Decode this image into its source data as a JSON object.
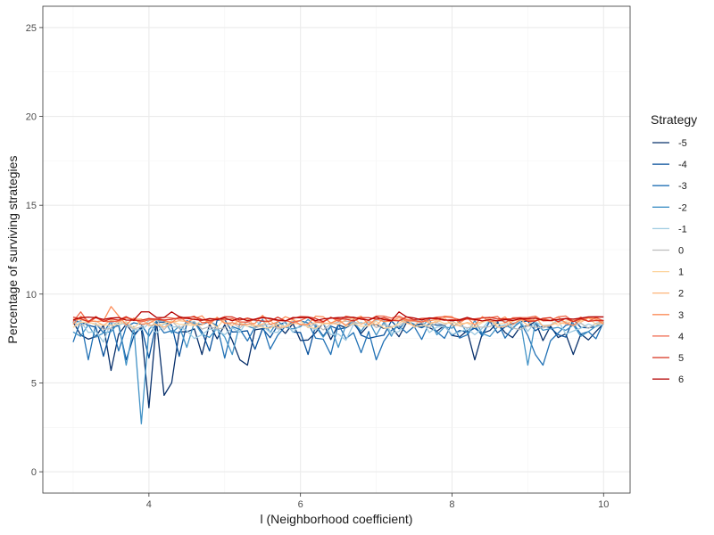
{
  "chart_data": {
    "type": "line",
    "title": "",
    "xlabel": "l (Neighborhood coefficient)",
    "ylabel": "Percentage of surviving strategies",
    "xlim": [
      2.6,
      10.35
    ],
    "ylim": [
      -1.2,
      26.2
    ],
    "x_ticks": [
      4,
      6,
      8,
      10
    ],
    "y_ticks": [
      0,
      5,
      10,
      15,
      20,
      25
    ],
    "grid": true,
    "legend": {
      "title": "Strategy",
      "placement": "right"
    },
    "x_sampling": {
      "start": 3,
      "end": 10,
      "step": 0.1
    },
    "series": [
      {
        "name": "-5",
        "color": "#08306b",
        "seed": 11,
        "baseline": 8.0,
        "noise": 0.6,
        "dips": [
          [
            3.45,
            5.7
          ],
          [
            3.95,
            3.6
          ],
          [
            4.25,
            4.3
          ],
          [
            4.3,
            5.0
          ],
          [
            4.7,
            6.6
          ],
          [
            5.15,
            6.3
          ],
          [
            5.3,
            6.0
          ],
          [
            7.35,
            7.6
          ],
          [
            8.3,
            6.3
          ],
          [
            9.6,
            6.6
          ]
        ]
      },
      {
        "name": "-4",
        "color": "#08519c",
        "seed": 23,
        "baseline": 8.1,
        "noise": 0.55,
        "dips": [
          [
            3.4,
            6.5
          ],
          [
            3.75,
            6.3
          ],
          [
            4.0,
            6.4
          ],
          [
            4.4,
            6.5
          ],
          [
            4.8,
            6.8
          ],
          [
            5.45,
            6.9
          ],
          [
            6.1,
            6.6
          ]
        ]
      },
      {
        "name": "-3",
        "color": "#2171b5",
        "seed": 37,
        "baseline": 8.0,
        "noise": 0.6,
        "dips": [
          [
            3.0,
            7.3
          ],
          [
            3.2,
            6.3
          ],
          [
            3.6,
            6.8
          ],
          [
            5.0,
            6.4
          ],
          [
            5.6,
            6.9
          ],
          [
            6.4,
            6.6
          ],
          [
            6.8,
            6.7
          ],
          [
            7.0,
            6.3
          ],
          [
            9.1,
            6.6
          ],
          [
            9.2,
            6.0
          ]
        ]
      },
      {
        "name": "-2",
        "color": "#4292c6",
        "seed": 51,
        "baseline": 8.1,
        "noise": 0.55,
        "dips": [
          [
            3.85,
            2.7
          ],
          [
            3.7,
            6.0
          ],
          [
            4.55,
            7.0
          ],
          [
            5.1,
            6.6
          ],
          [
            6.5,
            7.0
          ],
          [
            9.0,
            6.0
          ]
        ]
      },
      {
        "name": "-1",
        "color": "#9ecae1",
        "seed": 67,
        "baseline": 8.2,
        "noise": 0.45,
        "dips": [
          [
            3.4,
            7.3
          ],
          [
            4.6,
            7.5
          ],
          [
            6.6,
            7.4
          ]
        ]
      },
      {
        "name": "0",
        "color": "#bdbdbd",
        "seed": 79,
        "baseline": 8.3,
        "noise": 0.3,
        "dips": []
      },
      {
        "name": "1",
        "color": "#fdd49e",
        "seed": 83,
        "baseline": 8.4,
        "noise": 0.3,
        "dips": []
      },
      {
        "name": "2",
        "color": "#fdbb84",
        "seed": 97,
        "baseline": 8.45,
        "noise": 0.3,
        "dips": []
      },
      {
        "name": "3",
        "color": "#fc8d59",
        "seed": 101,
        "baseline": 8.55,
        "noise": 0.3,
        "dips": [
          [
            3.5,
            9.3
          ]
        ]
      },
      {
        "name": "4",
        "color": "#ef6548",
        "seed": 113,
        "baseline": 8.6,
        "noise": 0.2,
        "dips": [
          [
            3.1,
            9.0
          ]
        ]
      },
      {
        "name": "5",
        "color": "#d7301f",
        "seed": 127,
        "baseline": 8.6,
        "noise": 0.15,
        "dips": []
      },
      {
        "name": "6",
        "color": "#b30000",
        "seed": 131,
        "baseline": 8.62,
        "noise": 0.12,
        "dips": [
          [
            3.9,
            9.0
          ],
          [
            4.0,
            9.0
          ],
          [
            4.3,
            9.0
          ],
          [
            7.3,
            9.0
          ]
        ]
      }
    ]
  }
}
